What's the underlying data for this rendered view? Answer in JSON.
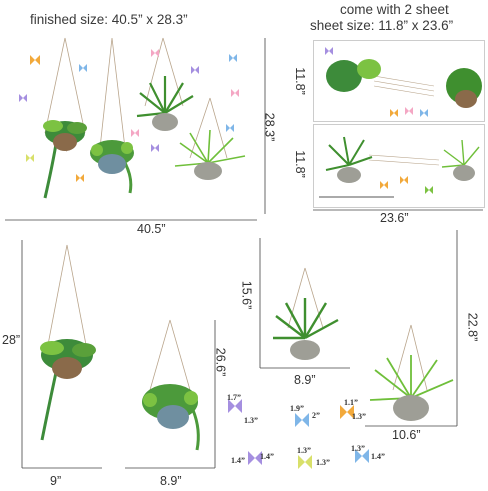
{
  "header": {
    "finished_size": "finished size: 40.5” x 28.3”",
    "come_with": "come with 2 sheet",
    "sheet_size": "sheet size: 11.8” x 23.6”"
  },
  "finished_panel": {
    "width_label": "40.5”",
    "height_label": "28.3”"
  },
  "sheets_panel": {
    "sheet1_height": "11.8”",
    "sheet2_height": "11.8”",
    "width_label": "23.6”"
  },
  "pieces": [
    {
      "height": "28”",
      "width": "9”"
    },
    {
      "height": "26.6”",
      "width": "8.9”"
    },
    {
      "height": "15.6”",
      "width": "8.9”"
    },
    {
      "height": "22.8”",
      "width": "10.6”"
    }
  ],
  "butterflies": [
    {
      "a": "1.7”",
      "b": "1.3”"
    },
    {
      "a": "1.9”",
      "b": "2”"
    },
    {
      "a": "1.1”",
      "b": "1.3”"
    },
    {
      "a": "1.4”",
      "b": "1.4”"
    },
    {
      "a": "1.3”",
      "b": "1.3”"
    },
    {
      "a": "1.3”",
      "b": "1.4”"
    }
  ],
  "colors": {
    "leaf_dark": "#2f7d32",
    "leaf_light": "#7cc242",
    "pot_gray": "#9e9e96",
    "pot_brown": "#8a6a4a",
    "pot_blue": "#6f8fa0",
    "rope": "#b9a58c",
    "butterfly_orange": "#f2a93b",
    "butterfly_pink": "#f4a7c4",
    "butterfly_purple": "#a58fe0",
    "butterfly_blue": "#7fb6e8",
    "butterfly_yellow": "#d8e06a"
  }
}
